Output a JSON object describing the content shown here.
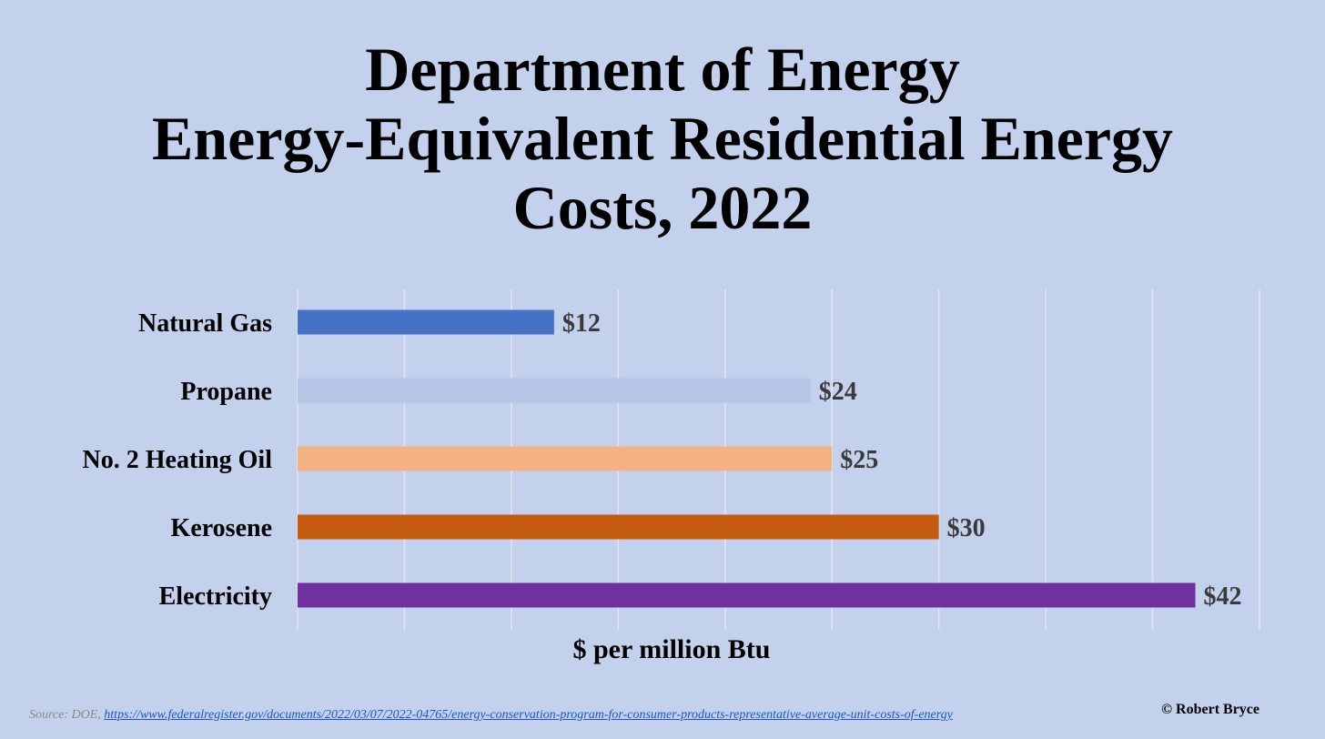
{
  "title_lines": [
    "Department of Energy",
    "Energy-Equivalent Residential Energy",
    "Costs, 2022"
  ],
  "chart_data": {
    "type": "bar",
    "orientation": "horizontal",
    "categories": [
      "Natural Gas",
      "Propane",
      "No. 2 Heating Oil",
      "Kerosene",
      "Electricity"
    ],
    "values": [
      12,
      24,
      25,
      30,
      42
    ],
    "value_labels": [
      "$12",
      "$24",
      "$25",
      "$30",
      "$42"
    ],
    "bar_colors": [
      "#4472c4",
      "#b4c5e6",
      "#f4b183",
      "#c55a11",
      "#7030a0"
    ],
    "xlabel": "$ per million Btu",
    "xlim": [
      0,
      45
    ],
    "grid": "vertical",
    "gridline_color": "#e1e6f1"
  },
  "footer": {
    "source_prefix": "Source: DOE,",
    "source_link": "https://www.federalregister.gov/documents/2022/03/07/2022-04765/energy-conservation-program-for-consumer-products-representative-average-unit-costs-of-energy",
    "copyright": "© Robert Bryce"
  }
}
